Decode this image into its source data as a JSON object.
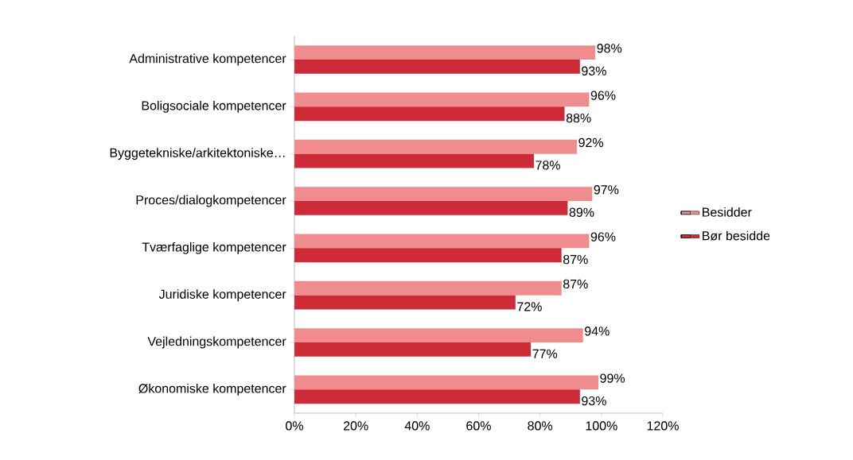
{
  "chart_data": {
    "type": "bar",
    "orientation": "horizontal",
    "categories": [
      "Administrative kompetencer",
      "Boligsociale kompetencer",
      "Byggetekniske/arkitektoniske…",
      "Proces/dialogkompetencer",
      "Tværfaglige kompetencer",
      "Juridiske kompetencer",
      "Vejledningskompetencer",
      "Økonomiske kompetencer"
    ],
    "series": [
      {
        "name": "Besidder",
        "color": "#f08c8e",
        "values": [
          98,
          96,
          92,
          97,
          96,
          87,
          94,
          99
        ],
        "value_labels": [
          "98%",
          "96%",
          "92%",
          "97%",
          "96%",
          "87%",
          "94%",
          "99%"
        ]
      },
      {
        "name": "Bør besidde",
        "color": "#cd2b37",
        "values": [
          93,
          88,
          78,
          89,
          87,
          72,
          77,
          93
        ],
        "value_labels": [
          "93%",
          "88%",
          "78%",
          "89%",
          "87%",
          "72%",
          "77%",
          "93%"
        ]
      }
    ],
    "xlim": [
      0,
      120
    ],
    "xticks": [
      {
        "value": 0,
        "label": "0%"
      },
      {
        "value": 20,
        "label": "20%"
      },
      {
        "value": 40,
        "label": "40%"
      },
      {
        "value": 60,
        "label": "60%"
      },
      {
        "value": 80,
        "label": "80%"
      },
      {
        "value": 100,
        "label": "100%"
      },
      {
        "value": 120,
        "label": "120%"
      }
    ],
    "legend": "right"
  }
}
